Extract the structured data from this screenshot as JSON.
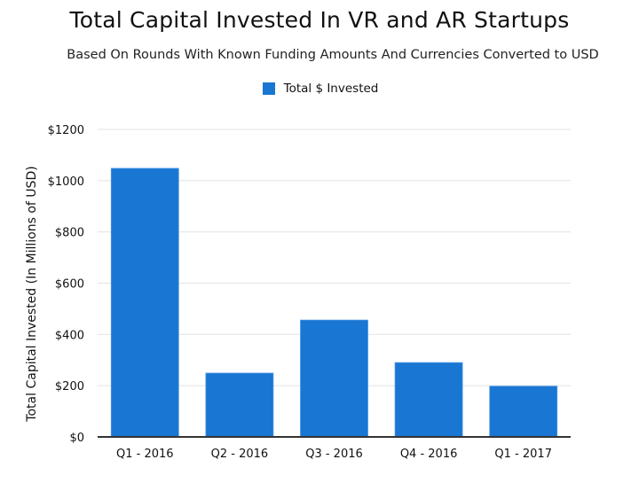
{
  "chart_data": {
    "type": "bar",
    "title": "Total Capital Invested In VR and AR Startups",
    "subtitle": "Based On Rounds With Known Funding Amounts And Currencies Converted to USD",
    "legend": {
      "position": "top-center",
      "entries": [
        "Total $ Invested"
      ]
    },
    "categories": [
      "Q1 - 2016",
      "Q2 - 2016",
      "Q3 - 2016",
      "Q4 - 2016",
      "Q1 - 2017"
    ],
    "series": [
      {
        "name": "Total $ Invested",
        "color": "#1976d2",
        "values": [
          1048,
          249,
          456,
          290,
          198
        ]
      }
    ],
    "xlabel": "",
    "ylabel": "Total Capital Invested (In Millions of USD)",
    "ylim": [
      0,
      1200
    ],
    "yticks": [
      0,
      200,
      400,
      600,
      800,
      1000,
      1200
    ],
    "ytick_labels": [
      "$0",
      "$200",
      "$400",
      "$600",
      "$800",
      "$1000",
      "$1200"
    ],
    "grid": true
  }
}
